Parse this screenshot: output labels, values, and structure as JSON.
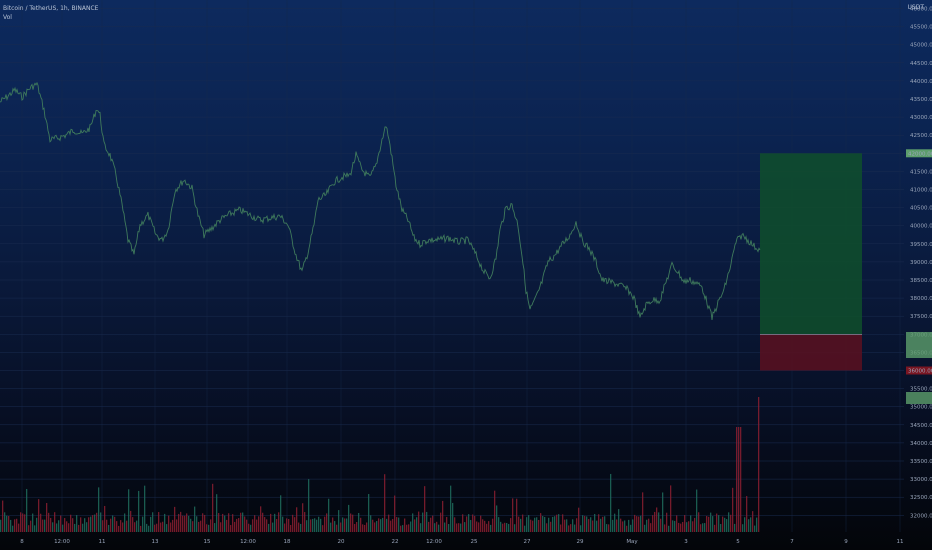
{
  "legend": {
    "symbol_line": "Bitcoin / TetherUS, 1h, BINANCE",
    "indicator": "Vol"
  },
  "currency": "USDT",
  "colors": {
    "price_line": "#3f7a5c",
    "target_zone": "#0f4f2c",
    "stop_zone": "#5a1020",
    "target_tag": "#5c9e6c",
    "stop_tag": "#7a1622",
    "volume_up": "#1e6b5c",
    "volume_down": "#8a1f30"
  },
  "y_axis": {
    "labels": [
      "46000.00",
      "45500.00",
      "45000.00",
      "44500.00",
      "44000.00",
      "43500.00",
      "43000.00",
      "42500.00",
      "42000.00",
      "41500.00",
      "41000.00",
      "40500.00",
      "40000.00",
      "39500.00",
      "39000.00",
      "38500.00",
      "38000.00",
      "37500.00",
      "37000.00",
      "36500.00",
      "36000.00",
      "35500.00",
      "35000.00",
      "34500.00",
      "34000.00",
      "33500.00",
      "33000.00",
      "32500.00",
      "32000.00"
    ],
    "range": [
      32000,
      46000
    ],
    "target_tag_label": "42000.00",
    "stop_tag_label": "36000.00"
  },
  "x_axis": {
    "labels": [
      "8",
      "12:00",
      "11",
      "13",
      "15",
      "12:00",
      "18",
      "20",
      "22",
      "12:00",
      "25",
      "27",
      "29",
      "May",
      "3",
      "5",
      "7",
      "9",
      "11"
    ]
  },
  "position_tool": {
    "entry": 37000,
    "target": 42000,
    "stop": 36000
  }
}
